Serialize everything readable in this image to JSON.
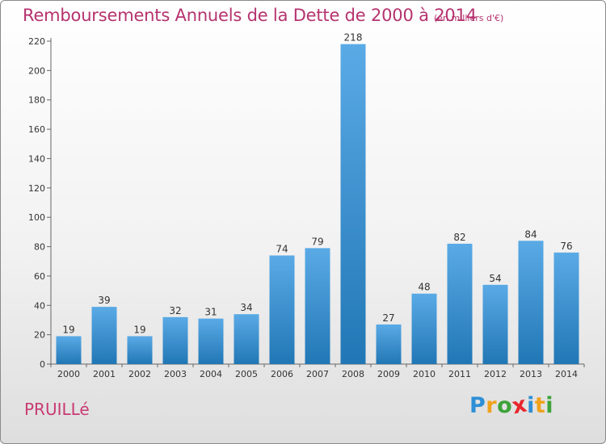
{
  "chart_data": {
    "type": "bar",
    "title": "Remboursements Annuels de la Dette de 2000 à 2014",
    "subtitle": "(en milliers d'€)",
    "categories": [
      "2000",
      "2001",
      "2002",
      "2003",
      "2004",
      "2005",
      "2006",
      "2007",
      "2008",
      "2009",
      "2010",
      "2011",
      "2012",
      "2013",
      "2014"
    ],
    "values": [
      19,
      39,
      19,
      32,
      31,
      34,
      74,
      79,
      218,
      27,
      48,
      82,
      54,
      84,
      76
    ],
    "ylim": [
      0,
      220
    ],
    "yticks": [
      0,
      20,
      40,
      60,
      80,
      100,
      120,
      140,
      160,
      180,
      200,
      220
    ],
    "xlabel": "",
    "ylabel": "",
    "grid": false
  },
  "place_name": "PRUILLé",
  "logo": {
    "letters": [
      "P",
      "r",
      "o",
      "x",
      "i",
      "t",
      "i"
    ],
    "colors": [
      "#2e8fd6",
      "#f0a21c",
      "#3da33a",
      "#e8262c",
      "#2e8fd6",
      "#f0a21c",
      "#3da33a"
    ]
  },
  "colors": {
    "bar_top": "#5aaae6",
    "bar_bottom": "#2177b5",
    "title": "#b5336e"
  }
}
